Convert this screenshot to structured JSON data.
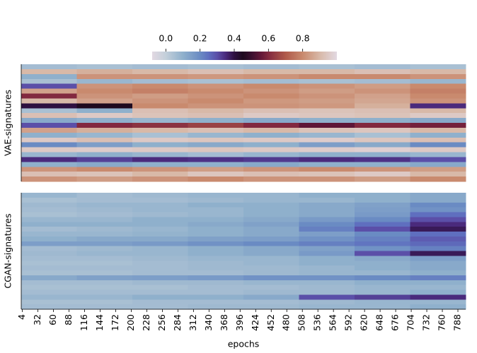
{
  "chart_data": [
    {
      "type": "heatmap",
      "ylabel": "VAE-signatures",
      "xlim": [
        2,
        802
      ],
      "x_edges": [
        2,
        102,
        202,
        302,
        402,
        502,
        602,
        702,
        802
      ],
      "colorscale": [
        [
          -0.08,
          "#e2d9e2"
        ],
        [
          0.0,
          "#c3cfda"
        ],
        [
          0.1,
          "#8fb0cc"
        ],
        [
          0.2,
          "#6a8bc3"
        ],
        [
          0.25,
          "#5f6fbf"
        ],
        [
          0.3,
          "#5b4fa8"
        ],
        [
          0.35,
          "#4a2a7c"
        ],
        [
          0.4,
          "#2e1040"
        ],
        [
          0.45,
          "#1e0a1f"
        ],
        [
          0.5,
          "#3a0f2f"
        ],
        [
          0.55,
          "#5e1637"
        ],
        [
          0.6,
          "#82293f"
        ],
        [
          0.7,
          "#b05a4a"
        ],
        [
          0.8,
          "#c98a6e"
        ],
        [
          0.9,
          "#d8b9a8"
        ],
        [
          1.0,
          "#e2d9e2"
        ]
      ],
      "colorbar": {
        "lim": [
          -0.08,
          1.0
        ],
        "ticks": [
          {
            "value": 0,
            "label": "0.0"
          },
          0.2,
          0.4,
          0.6,
          0.8
        ]
      },
      "values": [
        [
          0.06,
          0.05,
          0.06,
          0.05,
          0.06,
          0.05,
          0.06,
          0.05
        ],
        [
          0.9,
          0.88,
          0.9,
          0.92,
          0.9,
          0.9,
          0.92,
          0.9
        ],
        [
          0.1,
          0.82,
          0.82,
          0.83,
          0.82,
          0.8,
          0.8,
          0.82
        ],
        [
          0.05,
          0.08,
          0.06,
          0.05,
          0.06,
          0.05,
          0.06,
          0.08
        ],
        [
          0.3,
          0.82,
          0.8,
          0.82,
          0.8,
          0.82,
          0.84,
          0.8
        ],
        [
          0.85,
          0.8,
          0.78,
          0.8,
          0.82,
          0.84,
          0.82,
          0.78
        ],
        [
          0.6,
          0.82,
          0.84,
          0.82,
          0.8,
          0.82,
          0.85,
          0.8
        ],
        [
          0.9,
          0.85,
          0.82,
          0.8,
          0.83,
          0.84,
          0.86,
          0.82
        ],
        [
          0.4,
          0.45,
          0.8,
          0.82,
          0.82,
          0.83,
          0.88,
          0.35
        ],
        [
          0.05,
          0.1,
          0.92,
          0.9,
          0.92,
          0.93,
          0.92,
          0.9
        ],
        [
          0.92,
          0.95,
          0.93,
          0.92,
          0.95,
          0.94,
          0.93,
          0.95
        ],
        [
          0.12,
          0.1,
          0.08,
          0.1,
          0.12,
          0.1,
          0.1,
          0.12
        ],
        [
          0.3,
          0.6,
          0.62,
          0.65,
          0.6,
          0.55,
          0.6,
          0.58
        ],
        [
          0.85,
          0.88,
          0.9,
          0.92,
          0.9,
          0.93,
          0.94,
          0.9
        ],
        [
          0.1,
          0.08,
          0.05,
          0.08,
          0.1,
          0.08,
          0.05,
          0.1
        ],
        [
          0.95,
          0.92,
          0.95,
          0.94,
          0.95,
          0.96,
          0.94,
          0.92
        ],
        [
          0.2,
          0.15,
          0.1,
          0.12,
          0.1,
          0.15,
          0.12,
          0.2
        ],
        [
          0.95,
          0.96,
          0.95,
          0.94,
          0.95,
          0.96,
          0.97,
          0.95
        ],
        [
          0.08,
          0.1,
          0.08,
          0.06,
          0.08,
          0.1,
          0.1,
          0.08
        ],
        [
          0.35,
          0.32,
          0.35,
          0.34,
          0.33,
          0.35,
          0.34,
          0.3
        ],
        [
          0.1,
          0.12,
          0.1,
          0.1,
          0.12,
          0.1,
          0.1,
          0.12
        ],
        [
          0.82,
          0.8,
          0.82,
          0.84,
          0.82,
          0.8,
          0.82,
          0.84
        ],
        [
          0.92,
          0.93,
          0.9,
          0.94,
          0.92,
          0.93,
          0.95,
          0.9
        ],
        [
          0.82,
          0.84,
          0.82,
          0.8,
          0.82,
          0.82,
          0.84,
          0.8
        ]
      ]
    },
    {
      "type": "heatmap",
      "ylabel": "CGAN-signatures",
      "xlabel": "epochs",
      "xlim": [
        2,
        802
      ],
      "x_edges": [
        2,
        102,
        202,
        302,
        402,
        502,
        602,
        702,
        802
      ],
      "colorscale": [
        [
          -0.08,
          "#e2d9e2"
        ],
        [
          0.0,
          "#c3cfda"
        ],
        [
          0.1,
          "#8fb0cc"
        ],
        [
          0.2,
          "#6a8bc3"
        ],
        [
          0.25,
          "#5f6fbf"
        ],
        [
          0.3,
          "#5b4fa8"
        ],
        [
          0.35,
          "#4a2a7c"
        ],
        [
          0.4,
          "#2e1040"
        ],
        [
          0.45,
          "#1e0a1f"
        ],
        [
          0.5,
          "#3a0f2f"
        ],
        [
          0.55,
          "#5e1637"
        ],
        [
          0.6,
          "#82293f"
        ],
        [
          0.7,
          "#b05a4a"
        ],
        [
          0.8,
          "#c98a6e"
        ],
        [
          0.9,
          "#d8b9a8"
        ],
        [
          1.0,
          "#e2d9e2"
        ]
      ],
      "xticks": [
        4,
        32,
        60,
        88,
        116,
        144,
        172,
        200,
        228,
        256,
        284,
        312,
        340,
        368,
        396,
        424,
        452,
        480,
        508,
        536,
        564,
        592,
        620,
        648,
        676,
        704,
        732,
        760,
        788
      ],
      "values": [
        [
          0.08,
          0.06,
          0.07,
          0.08,
          0.08,
          0.1,
          0.1,
          0.12
        ],
        [
          0.05,
          0.06,
          0.06,
          0.07,
          0.08,
          0.08,
          0.1,
          0.12
        ],
        [
          0.07,
          0.08,
          0.08,
          0.1,
          0.1,
          0.12,
          0.14,
          0.2
        ],
        [
          0.06,
          0.07,
          0.08,
          0.08,
          0.1,
          0.12,
          0.15,
          0.18
        ],
        [
          0.05,
          0.06,
          0.07,
          0.08,
          0.1,
          0.12,
          0.16,
          0.25
        ],
        [
          0.08,
          0.08,
          0.1,
          0.1,
          0.12,
          0.16,
          0.2,
          0.3
        ],
        [
          0.1,
          0.1,
          0.1,
          0.12,
          0.14,
          0.2,
          0.25,
          0.35
        ],
        [
          0.06,
          0.07,
          0.08,
          0.1,
          0.12,
          0.22,
          0.3,
          0.38
        ],
        [
          0.08,
          0.08,
          0.09,
          0.1,
          0.12,
          0.15,
          0.2,
          0.25
        ],
        [
          0.1,
          0.12,
          0.12,
          0.14,
          0.15,
          0.18,
          0.22,
          0.28
        ],
        [
          0.15,
          0.15,
          0.16,
          0.18,
          0.2,
          0.22,
          0.24,
          0.26
        ],
        [
          0.06,
          0.07,
          0.08,
          0.1,
          0.12,
          0.14,
          0.18,
          0.22
        ],
        [
          0.07,
          0.08,
          0.08,
          0.1,
          0.12,
          0.16,
          0.3,
          0.38
        ],
        [
          0.06,
          0.06,
          0.07,
          0.08,
          0.08,
          0.1,
          0.12,
          0.15
        ],
        [
          0.05,
          0.05,
          0.06,
          0.07,
          0.08,
          0.1,
          0.1,
          0.12
        ],
        [
          0.06,
          0.06,
          0.06,
          0.07,
          0.07,
          0.08,
          0.1,
          0.12
        ],
        [
          0.05,
          0.05,
          0.06,
          0.06,
          0.07,
          0.08,
          0.08,
          0.1
        ],
        [
          0.12,
          0.14,
          0.15,
          0.16,
          0.18,
          0.18,
          0.2,
          0.22
        ],
        [
          0.06,
          0.06,
          0.07,
          0.07,
          0.08,
          0.08,
          0.1,
          0.1
        ],
        [
          0.05,
          0.05,
          0.05,
          0.06,
          0.06,
          0.07,
          0.08,
          0.08
        ],
        [
          0.06,
          0.06,
          0.06,
          0.06,
          0.07,
          0.07,
          0.08,
          0.1
        ],
        [
          0.08,
          0.08,
          0.1,
          0.1,
          0.12,
          0.3,
          0.32,
          0.35
        ],
        [
          0.05,
          0.05,
          0.06,
          0.06,
          0.06,
          0.07,
          0.08,
          0.08
        ],
        [
          0.06,
          0.06,
          0.06,
          0.07,
          0.07,
          0.08,
          0.08,
          0.1
        ]
      ]
    }
  ]
}
